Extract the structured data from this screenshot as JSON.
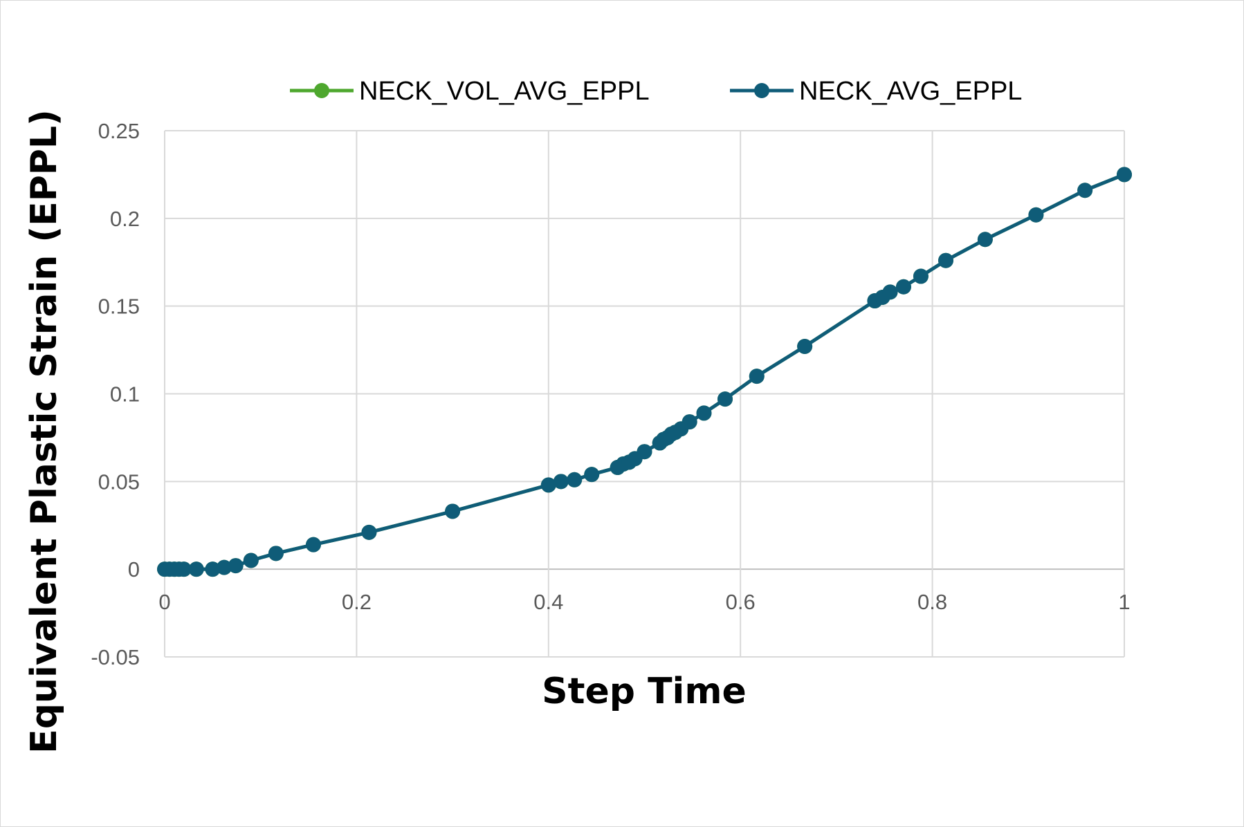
{
  "chart_data": {
    "type": "line",
    "title": "",
    "xlabel": "Step Time",
    "ylabel": "Equivalent Plastic Strain (EPPL)",
    "xlim": [
      0,
      1
    ],
    "ylim": [
      -0.05,
      0.25
    ],
    "x_ticks": [
      "0",
      "0.2",
      "0.4",
      "0.6",
      "0.8",
      "1"
    ],
    "y_ticks": [
      "-0.05",
      "0",
      "0.05",
      "0.1",
      "0.15",
      "0.2",
      "0.25"
    ],
    "grid": true,
    "legend_position": "top",
    "series": [
      {
        "name": "NECK_VOL_AVG_EPPL",
        "color": "#4ea72e",
        "x": [
          0,
          0.005,
          0.01,
          0.015,
          0.02,
          0.033,
          0.05,
          0.062,
          0.074,
          0.09,
          0.116,
          0.155,
          0.213,
          0.3,
          0.4,
          0.413,
          0.427,
          0.445,
          0.472,
          0.478,
          0.484,
          0.49,
          0.5,
          0.516,
          0.52,
          0.524,
          0.528,
          0.532,
          0.538,
          0.547,
          0.562,
          0.584,
          0.617,
          0.667,
          0.74,
          0.748,
          0.756,
          0.77,
          0.788,
          0.814,
          0.855,
          0.908,
          0.959,
          1.0
        ],
        "y": [
          0,
          0,
          0,
          0,
          0,
          0,
          0,
          0.001,
          0.002,
          0.005,
          0.009,
          0.014,
          0.021,
          0.033,
          0.048,
          0.05,
          0.051,
          0.054,
          0.058,
          0.06,
          0.061,
          0.063,
          0.067,
          0.072,
          0.074,
          0.075,
          0.077,
          0.078,
          0.08,
          0.084,
          0.089,
          0.097,
          0.11,
          0.127,
          0.153,
          0.155,
          0.158,
          0.161,
          0.167,
          0.176,
          0.188,
          0.202,
          0.216,
          0.225
        ]
      },
      {
        "name": "NECK_AVG_EPPL",
        "color": "#0f5c78",
        "x": [
          0,
          0.005,
          0.01,
          0.015,
          0.02,
          0.033,
          0.05,
          0.062,
          0.074,
          0.09,
          0.116,
          0.155,
          0.213,
          0.3,
          0.4,
          0.413,
          0.427,
          0.445,
          0.472,
          0.478,
          0.484,
          0.49,
          0.5,
          0.516,
          0.52,
          0.524,
          0.528,
          0.532,
          0.538,
          0.547,
          0.562,
          0.584,
          0.617,
          0.667,
          0.74,
          0.748,
          0.756,
          0.77,
          0.788,
          0.814,
          0.855,
          0.908,
          0.959,
          1.0
        ],
        "y": [
          0,
          0,
          0,
          0,
          0,
          0,
          0,
          0.001,
          0.002,
          0.005,
          0.009,
          0.014,
          0.021,
          0.033,
          0.048,
          0.05,
          0.051,
          0.054,
          0.058,
          0.06,
          0.061,
          0.063,
          0.067,
          0.072,
          0.074,
          0.075,
          0.077,
          0.078,
          0.08,
          0.084,
          0.089,
          0.097,
          0.11,
          0.127,
          0.153,
          0.155,
          0.158,
          0.161,
          0.167,
          0.176,
          0.188,
          0.202,
          0.216,
          0.225
        ]
      }
    ]
  }
}
